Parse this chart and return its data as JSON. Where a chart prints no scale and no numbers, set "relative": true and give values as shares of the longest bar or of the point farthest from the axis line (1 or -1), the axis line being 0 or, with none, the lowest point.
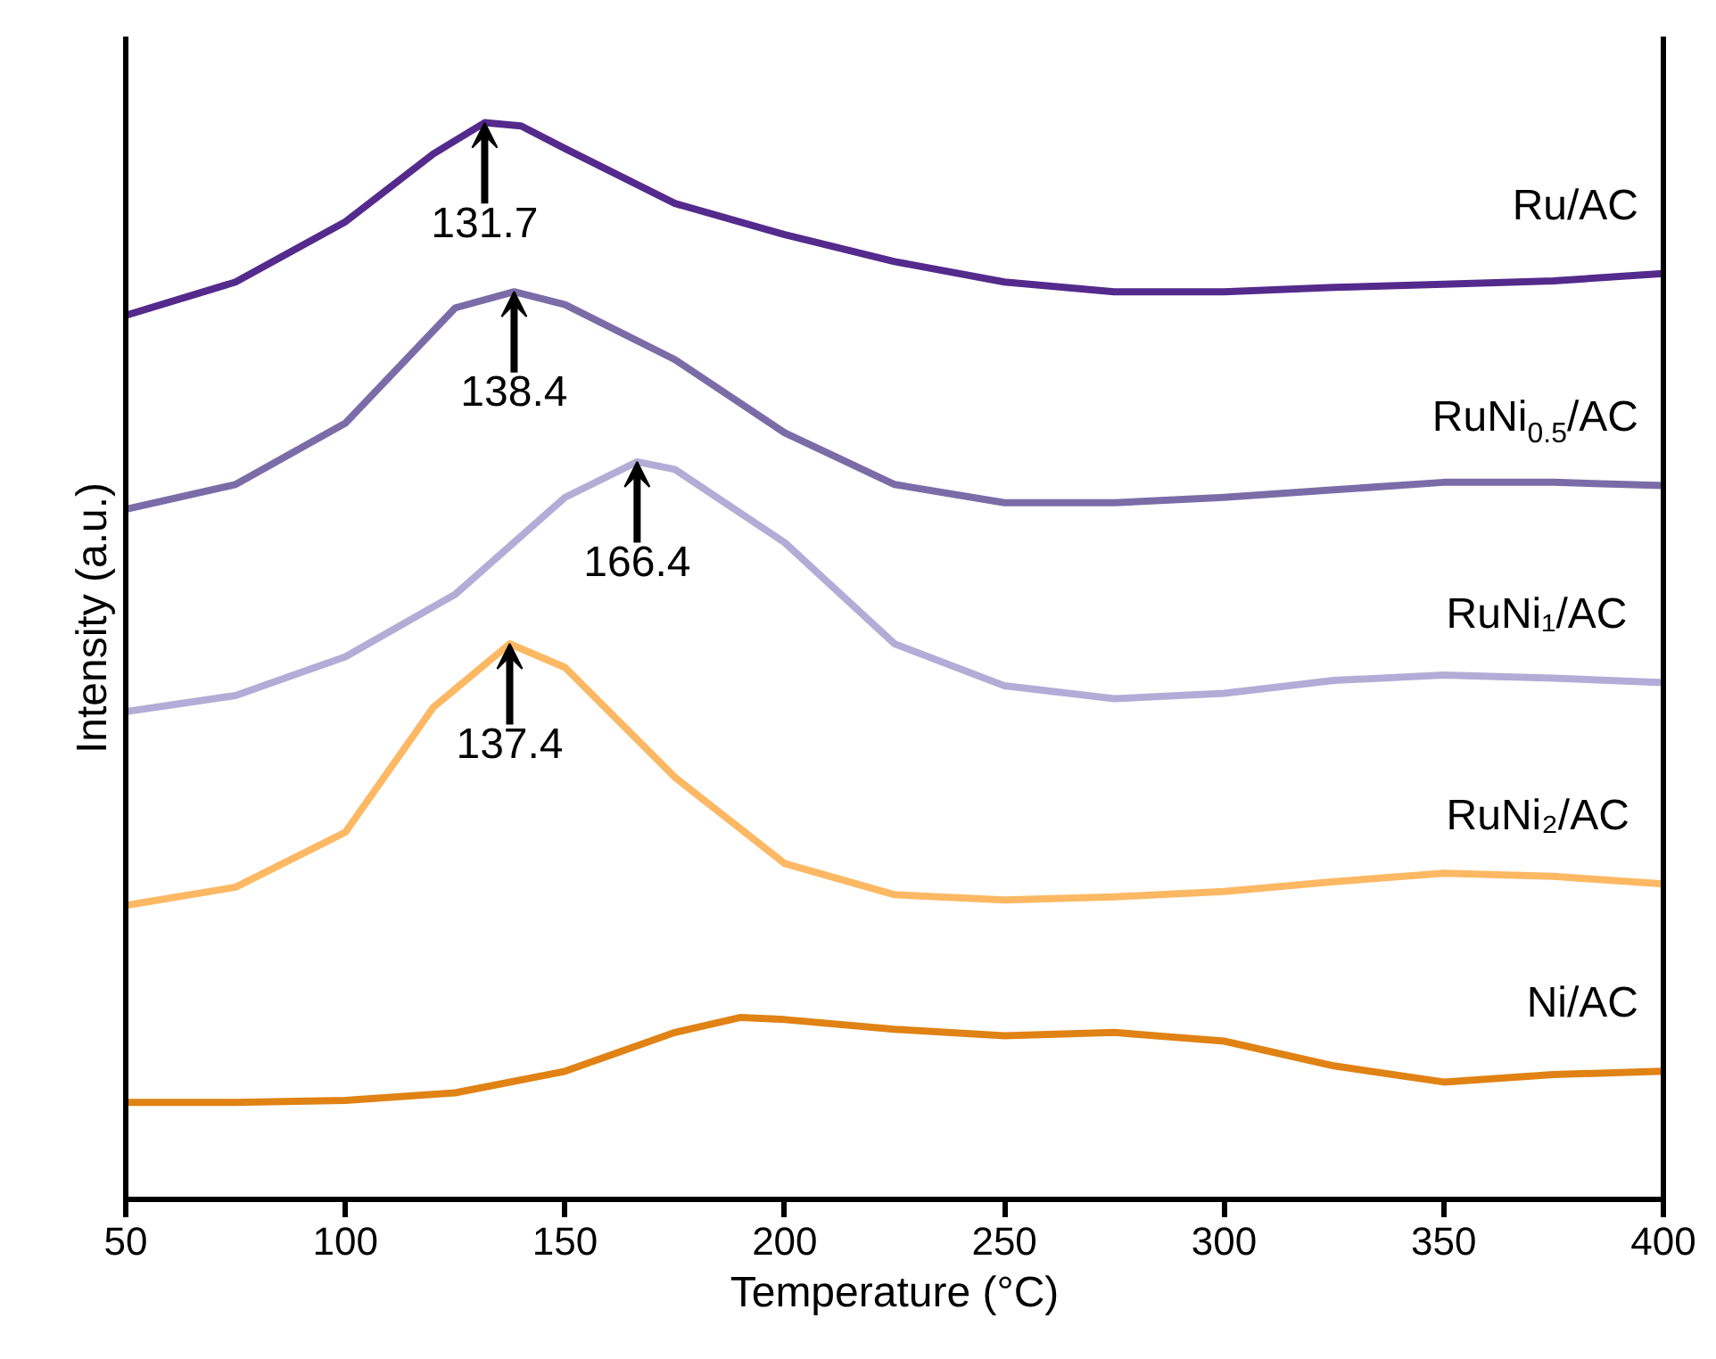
{
  "chart_data": {
    "type": "line",
    "relative": true,
    "xlabel": "Temperature (°C)",
    "ylabel": "Intensity (a.u.)",
    "xlim": [
      50,
      400
    ],
    "xticks": [
      50,
      100,
      150,
      200,
      250,
      300,
      350,
      400
    ],
    "grid": false,
    "line_style": "solid",
    "series": [
      {
        "name": "Ru/AC",
        "color": "#542a8c",
        "x": [
          50,
          75,
          100,
          120,
          131.7,
          140,
          150,
          175,
          200,
          225,
          250,
          275,
          300,
          325,
          350,
          375,
          400
        ],
        "values": [
          0.821,
          0.852,
          0.908,
          0.971,
          1.0,
          0.997,
          0.976,
          0.925,
          0.896,
          0.871,
          0.852,
          0.843,
          0.843,
          0.847,
          0.85,
          0.853,
          0.86
        ]
      },
      {
        "name": "RuNi$_{0.5}$/AC",
        "color": "#7b6ca8",
        "x": [
          50,
          75,
          100,
          125,
          138.4,
          150,
          175,
          200,
          225,
          250,
          275,
          300,
          325,
          350,
          375,
          400
        ],
        "values": [
          0.641,
          0.664,
          0.721,
          0.828,
          0.843,
          0.831,
          0.78,
          0.712,
          0.664,
          0.647,
          0.647,
          0.652,
          0.659,
          0.666,
          0.666,
          0.663
        ]
      },
      {
        "name": "RuNi₁/AC",
        "color": "#b3acd6",
        "x": [
          50,
          75,
          100,
          125,
          150,
          166.4,
          175,
          200,
          225,
          250,
          275,
          300,
          325,
          350,
          375,
          400
        ],
        "values": [
          0.453,
          0.468,
          0.504,
          0.562,
          0.652,
          0.685,
          0.678,
          0.61,
          0.516,
          0.477,
          0.465,
          0.47,
          0.482,
          0.487,
          0.484,
          0.48
        ]
      },
      {
        "name": "RuNi₂/AC",
        "color": "#fdb863",
        "x": [
          50,
          75,
          100,
          120,
          137.4,
          150,
          175,
          200,
          225,
          250,
          275,
          300,
          325,
          350,
          375,
          400
        ],
        "values": [
          0.273,
          0.29,
          0.341,
          0.457,
          0.516,
          0.494,
          0.392,
          0.312,
          0.283,
          0.278,
          0.281,
          0.286,
          0.295,
          0.303,
          0.3,
          0.293
        ]
      },
      {
        "name": "Ni/AC",
        "color": "#e08214",
        "x": [
          50,
          75,
          100,
          125,
          150,
          175,
          190,
          200,
          225,
          250,
          275,
          300,
          325,
          350,
          375,
          400
        ],
        "values": [
          0.09,
          0.09,
          0.092,
          0.099,
          0.119,
          0.155,
          0.169,
          0.167,
          0.158,
          0.152,
          0.155,
          0.147,
          0.124,
          0.109,
          0.116,
          0.119
        ]
      }
    ],
    "annotations": [
      {
        "text": "131.7",
        "x": 131.7,
        "y": 1.0
      },
      {
        "text": "138.4",
        "x": 138.4,
        "y": 0.843
      },
      {
        "text": "166.4",
        "x": 166.4,
        "y": 0.685
      },
      {
        "text": "137.4",
        "x": 137.4,
        "y": 0.516
      }
    ]
  }
}
